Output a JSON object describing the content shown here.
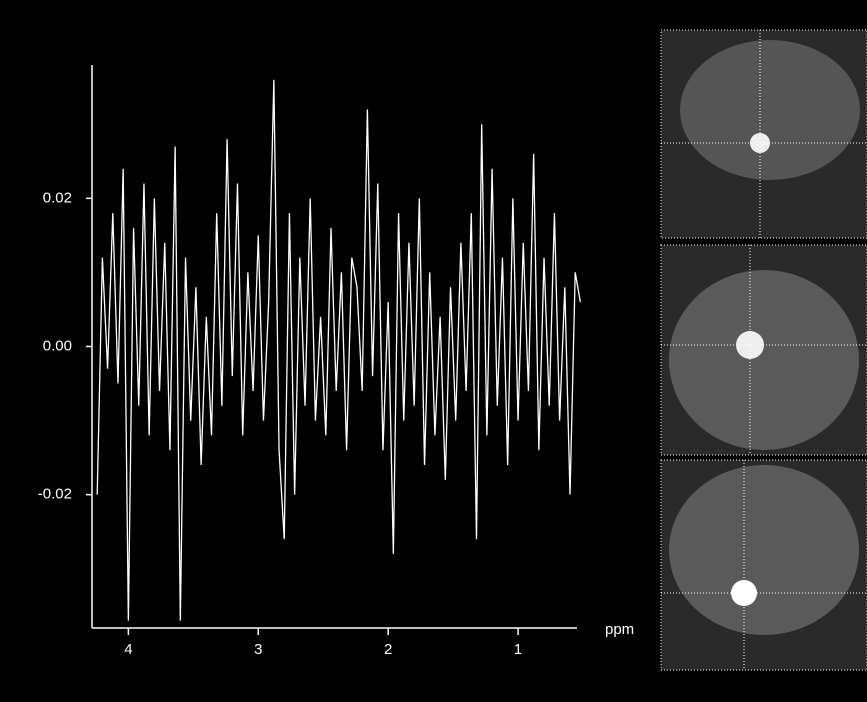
{
  "chart_data": {
    "type": "line",
    "x_label": "ppm",
    "color": "#ffffff",
    "x": [
      4.24,
      4.2,
      4.16,
      4.12,
      4.08,
      4.04,
      4,
      3.96,
      3.92,
      3.88,
      3.84,
      3.8,
      3.76,
      3.72,
      3.68,
      3.64,
      3.6,
      3.56,
      3.52,
      3.48,
      3.44,
      3.4,
      3.36,
      3.32,
      3.28,
      3.24,
      3.2,
      3.16,
      3.12,
      3.08,
      3.04,
      3,
      2.96,
      2.92,
      2.88,
      2.84,
      2.8,
      2.76,
      2.72,
      2.68,
      2.64,
      2.6,
      2.56,
      2.52,
      2.48,
      2.44,
      2.4,
      2.36,
      2.32,
      2.28,
      2.24,
      2.2,
      2.16,
      2.12,
      2.08,
      2.04,
      2,
      1.96,
      1.92,
      1.88,
      1.84,
      1.8,
      1.76,
      1.72,
      1.68,
      1.64,
      1.6,
      1.56,
      1.52,
      1.48,
      1.44,
      1.4,
      1.36,
      1.32,
      1.28,
      1.24,
      1.2,
      1.16,
      1.12,
      1.08,
      1.04,
      1,
      0.96,
      0.92,
      0.88,
      0.84,
      0.8,
      0.76,
      0.72,
      0.68,
      0.64,
      0.6,
      0.56,
      0.52
    ],
    "values": [
      -0.02,
      0.012,
      -0.003,
      0.018,
      -0.005,
      0.024,
      -0.037,
      0.016,
      -0.008,
      0.022,
      -0.012,
      0.02,
      -0.006,
      0.014,
      -0.014,
      0.027,
      -0.037,
      0.012,
      -0.01,
      0.008,
      -0.016,
      0.004,
      -0.012,
      0.018,
      -0.008,
      0.028,
      -0.004,
      0.022,
      -0.012,
      0.01,
      -0.006,
      0.015,
      -0.01,
      0.006,
      0.036,
      -0.014,
      -0.026,
      0.018,
      -0.02,
      0.012,
      -0.008,
      0.02,
      -0.01,
      0.004,
      -0.012,
      0.016,
      -0.006,
      0.01,
      -0.014,
      0.012,
      0.008,
      -0.006,
      0.032,
      -0.004,
      0.022,
      -0.014,
      0.006,
      -0.028,
      0.018,
      -0.01,
      0.014,
      -0.008,
      0.02,
      -0.016,
      0.01,
      -0.012,
      0.004,
      -0.018,
      0.008,
      -0.01,
      0.014,
      -0.006,
      0.018,
      -0.026,
      0.03,
      -0.012,
      0.024,
      -0.008,
      0.012,
      -0.016,
      0.02,
      -0.01,
      0.014,
      -0.006,
      0.026,
      -0.014,
      0.012,
      -0.008,
      0.018,
      -0.01,
      0.008,
      -0.02,
      0.01,
      0.006
    ],
    "xlim": [
      4.28,
      0.5
    ],
    "xticks": [
      4,
      3,
      2,
      1
    ],
    "ylim": [
      -0.038,
      0.038
    ],
    "yticks": [
      -0.02,
      {
        "value": 0,
        "label": "0.00"
      },
      0.02
    ]
  }
}
